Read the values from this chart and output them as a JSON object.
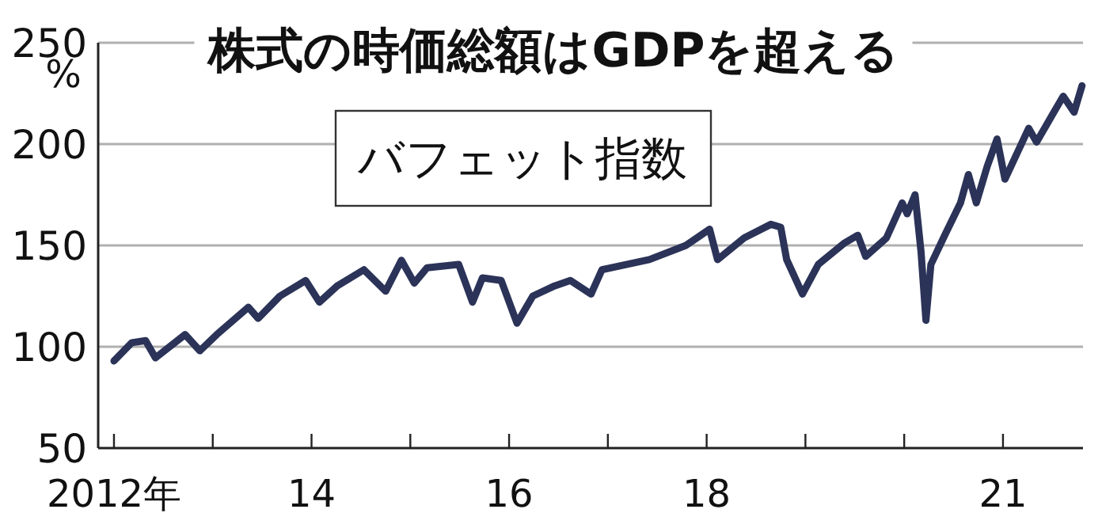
{
  "chart_data": {
    "type": "line",
    "title": "株式の時価総額はGDPを超える",
    "ylabel": "%",
    "xlim": [
      2011.84,
      2021.81
    ],
    "ylim": [
      50,
      250
    ],
    "yticks": [
      50,
      100,
      150,
      200,
      250
    ],
    "xticks": [
      {
        "value": 2012,
        "label": "2012年"
      },
      {
        "value": 2013,
        "label": null
      },
      {
        "value": 2014,
        "label": "14"
      },
      {
        "value": 2015,
        "label": null
      },
      {
        "value": 2016,
        "label": "16"
      },
      {
        "value": 2017,
        "label": null
      },
      {
        "value": 2018,
        "label": "18"
      },
      {
        "value": 2019,
        "label": null
      },
      {
        "value": 2020,
        "label": null
      },
      {
        "value": 2021,
        "label": "21"
      }
    ],
    "grid": "y",
    "legend": "top left",
    "line_style": "solid",
    "marker": "none",
    "series": [
      {
        "name": "バフェット指数",
        "color": "#2b3358",
        "x": [
          2012.0,
          2012.18,
          2012.32,
          2012.42,
          2012.72,
          2012.87,
          2013.04,
          2013.36,
          2013.46,
          2013.68,
          2013.94,
          2014.08,
          2014.26,
          2014.53,
          2014.75,
          2014.91,
          2015.04,
          2015.17,
          2015.49,
          2015.63,
          2015.73,
          2015.92,
          2016.08,
          2016.24,
          2016.46,
          2016.62,
          2016.83,
          2016.94,
          2017.42,
          2017.79,
          2018.03,
          2018.11,
          2018.38,
          2018.65,
          2018.75,
          2018.81,
          2018.97,
          2019.13,
          2019.39,
          2019.53,
          2019.61,
          2019.82,
          2019.98,
          2020.03,
          2020.11,
          2020.17,
          2020.22,
          2020.27,
          2020.41,
          2020.57,
          2020.65,
          2020.73,
          2020.84,
          2020.94,
          2021.02,
          2021.26,
          2021.34,
          2021.53,
          2021.61,
          2021.72,
          2021.8
        ],
        "values": [
          93,
          102,
          103,
          94.5,
          106,
          98,
          106,
          119.5,
          114,
          125,
          132.7,
          122,
          130,
          138,
          127.4,
          142.7,
          131.4,
          139,
          140.6,
          122,
          134,
          132.7,
          111.6,
          125,
          130,
          132.7,
          126,
          138,
          143,
          150,
          158,
          143,
          153.7,
          160.4,
          159,
          143,
          126,
          140.6,
          151,
          155,
          144.6,
          153.7,
          171,
          165.6,
          175,
          147,
          113,
          140.6,
          155,
          171,
          185,
          171,
          189,
          202.5,
          182.7,
          207.8,
          201,
          217,
          223.6,
          215.7,
          228.8
        ]
      }
    ]
  }
}
